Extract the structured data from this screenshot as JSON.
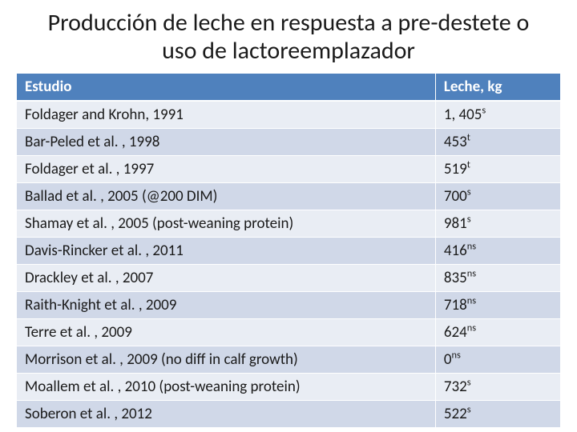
{
  "title": "Producción de leche en respuesta a pre-destete o uso de lactoreemplazador",
  "table": {
    "columns": [
      "Estudio",
      "Leche, kg"
    ],
    "col_widths_pct": [
      77,
      23
    ],
    "header_bg": "#4f81bd",
    "header_fg": "#ffffff",
    "row_bg_odd": "#e9edf4",
    "row_bg_even": "#d0d8e8",
    "text_color": "#1a1a1a",
    "title_fontsize_pt": 30,
    "cell_fontsize_pt": 19,
    "rows": [
      {
        "study": "Foldager and Krohn, 1991",
        "value": "1, 405",
        "sup": "s"
      },
      {
        "study": "Bar-Peled et al. , 1998",
        "value": "453",
        "sup": "t"
      },
      {
        "study": "Foldager et al. , 1997",
        "value": "519",
        "sup": "t"
      },
      {
        "study": "Ballad et al. , 2005 (@200 DIM)",
        "value": "700",
        "sup": "s"
      },
      {
        "study": "Shamay et al. , 2005 (post-weaning protein)",
        "value": "981",
        "sup": "s"
      },
      {
        "study": "Davis-Rincker et al. , 2011",
        "value": "416",
        "sup": "ns"
      },
      {
        "study": "Drackley et al. , 2007",
        "value": "835",
        "sup": "ns"
      },
      {
        "study": "Raith-Knight et al. , 2009",
        "value": "718",
        "sup": "ns"
      },
      {
        "study": "Terre et al. , 2009",
        "value": "624",
        "sup": "ns"
      },
      {
        "study": "Morrison et al. , 2009 (no diff in calf growth)",
        "value": "0",
        "sup": "ns"
      },
      {
        "study": "Moallem et al. , 2010 (post-weaning protein)",
        "value": "732",
        "sup": "s"
      },
      {
        "study": "Soberon et al. , 2012",
        "value": "522",
        "sup": "s"
      }
    ]
  }
}
